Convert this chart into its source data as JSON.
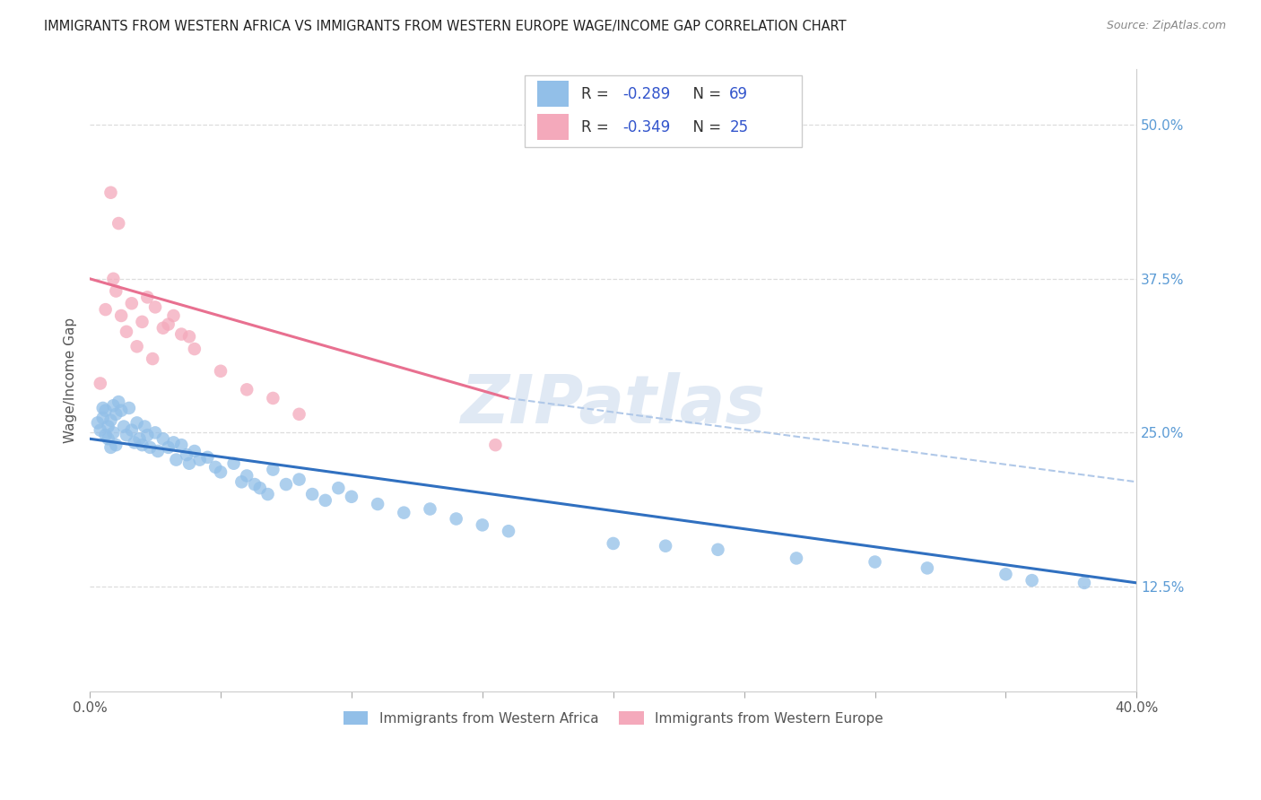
{
  "title": "IMMIGRANTS FROM WESTERN AFRICA VS IMMIGRANTS FROM WESTERN EUROPE WAGE/INCOME GAP CORRELATION CHART",
  "source": "Source: ZipAtlas.com",
  "ylabel": "Wage/Income Gap",
  "y_ticks_right": [
    "12.5%",
    "25.0%",
    "37.5%",
    "50.0%"
  ],
  "y_ticks_right_vals": [
    0.125,
    0.25,
    0.375,
    0.5
  ],
  "xlim": [
    0.0,
    0.4
  ],
  "ylim": [
    0.04,
    0.545
  ],
  "legend_blue_label": "Immigrants from Western Africa",
  "legend_pink_label": "Immigrants from Western Europe",
  "R_blue": -0.289,
  "N_blue": 69,
  "R_pink": -0.349,
  "N_pink": 25,
  "blue_color": "#92bfe8",
  "pink_color": "#f4a9bb",
  "blue_line_color": "#3070c0",
  "pink_line_color": "#e87090",
  "dashed_line_color": "#b0c8e8",
  "watermark": "ZIPatlas",
  "blue_line_x0": 0.0,
  "blue_line_y0": 0.245,
  "blue_line_x1": 0.4,
  "blue_line_y1": 0.128,
  "pink_line_x0": 0.0,
  "pink_line_y0": 0.375,
  "pink_line_solid_x1": 0.16,
  "pink_line_solid_y1": 0.278,
  "pink_line_dashed_x1": 0.4,
  "pink_line_dashed_y1": 0.21,
  "blue_scatter_x": [
    0.003,
    0.004,
    0.005,
    0.005,
    0.006,
    0.006,
    0.007,
    0.007,
    0.008,
    0.008,
    0.009,
    0.009,
    0.01,
    0.01,
    0.011,
    0.012,
    0.013,
    0.014,
    0.015,
    0.016,
    0.017,
    0.018,
    0.019,
    0.02,
    0.021,
    0.022,
    0.023,
    0.025,
    0.026,
    0.028,
    0.03,
    0.032,
    0.033,
    0.035,
    0.037,
    0.038,
    0.04,
    0.042,
    0.045,
    0.048,
    0.05,
    0.055,
    0.058,
    0.06,
    0.063,
    0.065,
    0.068,
    0.07,
    0.075,
    0.08,
    0.085,
    0.09,
    0.095,
    0.1,
    0.11,
    0.12,
    0.13,
    0.14,
    0.15,
    0.16,
    0.2,
    0.22,
    0.24,
    0.27,
    0.3,
    0.32,
    0.35,
    0.36,
    0.38
  ],
  "blue_scatter_y": [
    0.258,
    0.252,
    0.262,
    0.27,
    0.268,
    0.248,
    0.255,
    0.245,
    0.26,
    0.238,
    0.272,
    0.25,
    0.265,
    0.24,
    0.275,
    0.268,
    0.255,
    0.248,
    0.27,
    0.252,
    0.242,
    0.258,
    0.245,
    0.24,
    0.255,
    0.248,
    0.238,
    0.25,
    0.235,
    0.245,
    0.238,
    0.242,
    0.228,
    0.24,
    0.232,
    0.225,
    0.235,
    0.228,
    0.23,
    0.222,
    0.218,
    0.225,
    0.21,
    0.215,
    0.208,
    0.205,
    0.2,
    0.22,
    0.208,
    0.212,
    0.2,
    0.195,
    0.205,
    0.198,
    0.192,
    0.185,
    0.188,
    0.18,
    0.175,
    0.17,
    0.16,
    0.158,
    0.155,
    0.148,
    0.145,
    0.14,
    0.135,
    0.13,
    0.128
  ],
  "pink_scatter_x": [
    0.004,
    0.006,
    0.008,
    0.009,
    0.01,
    0.011,
    0.012,
    0.014,
    0.016,
    0.018,
    0.02,
    0.022,
    0.024,
    0.025,
    0.028,
    0.03,
    0.032,
    0.035,
    0.038,
    0.04,
    0.05,
    0.06,
    0.07,
    0.08,
    0.155
  ],
  "pink_scatter_y": [
    0.29,
    0.35,
    0.445,
    0.375,
    0.365,
    0.42,
    0.345,
    0.332,
    0.355,
    0.32,
    0.34,
    0.36,
    0.31,
    0.352,
    0.335,
    0.338,
    0.345,
    0.33,
    0.328,
    0.318,
    0.3,
    0.285,
    0.278,
    0.265,
    0.24
  ]
}
